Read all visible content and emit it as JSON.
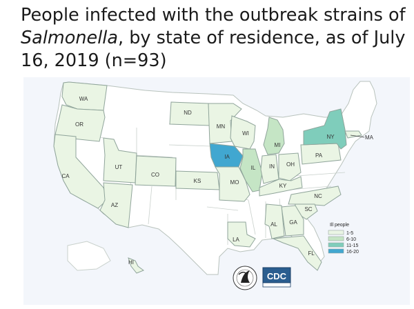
{
  "title": {
    "prefix": "People infected with the outbreak strains of ",
    "organism": "Salmonella",
    "suffix": ", by state of residence, as of July 16, 2019 (n=93)"
  },
  "legend": {
    "title": "Ill people",
    "bins": [
      {
        "label": "1-5",
        "color": "#eaf5e4"
      },
      {
        "label": "6-10",
        "color": "#c5e5c5"
      },
      {
        "label": "11-15",
        "color": "#7fcdbb"
      },
      {
        "label": "16-20",
        "color": "#41a7d0"
      }
    ]
  },
  "colors": {
    "no_cases": "#ffffff",
    "border": "#9aa7a0"
  },
  "states": [
    {
      "abbr": "WA",
      "bin": 1
    },
    {
      "abbr": "OR",
      "bin": 1
    },
    {
      "abbr": "CA",
      "bin": 1
    },
    {
      "abbr": "UT",
      "bin": 1
    },
    {
      "abbr": "CO",
      "bin": 1
    },
    {
      "abbr": "AZ",
      "bin": 1
    },
    {
      "abbr": "ND",
      "bin": 1
    },
    {
      "abbr": "MN",
      "bin": 1
    },
    {
      "abbr": "WI",
      "bin": 1
    },
    {
      "abbr": "IA",
      "bin": 4
    },
    {
      "abbr": "KS",
      "bin": 1
    },
    {
      "abbr": "MO",
      "bin": 1
    },
    {
      "abbr": "IL",
      "bin": 2
    },
    {
      "abbr": "IN",
      "bin": 1
    },
    {
      "abbr": "MI",
      "bin": 2
    },
    {
      "abbr": "OH",
      "bin": 1
    },
    {
      "abbr": "KY",
      "bin": 1
    },
    {
      "abbr": "PA",
      "bin": 1
    },
    {
      "abbr": "NY",
      "bin": 3
    },
    {
      "abbr": "MA",
      "bin": 1
    },
    {
      "abbr": "NC",
      "bin": 1
    },
    {
      "abbr": "SC",
      "bin": 1
    },
    {
      "abbr": "GA",
      "bin": 1
    },
    {
      "abbr": "AL",
      "bin": 1
    },
    {
      "abbr": "LA",
      "bin": 1
    },
    {
      "abbr": "FL",
      "bin": 1
    },
    {
      "abbr": "HI",
      "bin": 1
    }
  ],
  "logos": {
    "cdc": "CDC"
  }
}
